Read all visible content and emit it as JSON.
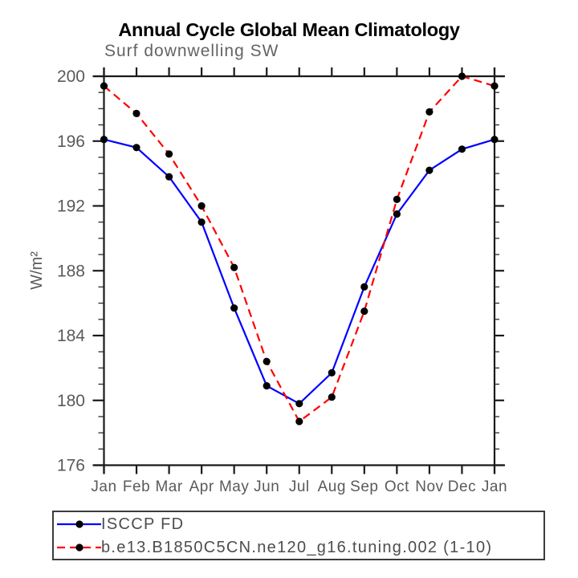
{
  "title": "Annual Cycle Global Mean Climatology",
  "subtitle": "Surf downwelling SW",
  "colors": {
    "series1": "#0000ff",
    "series2": "#ff0000",
    "marker": "#000000",
    "axis": "#1a1a1a",
    "tick_label": "#5a5a5a",
    "legend_text": "#4d4d4d"
  },
  "chart_data": {
    "type": "line",
    "title": "Annual Cycle Global Mean Climatology",
    "subtitle": "Surf downwelling SW",
    "xlabel": "",
    "ylabel": "W/m²",
    "categories": [
      "Jan",
      "Feb",
      "Mar",
      "Apr",
      "May",
      "Jun",
      "Jul",
      "Aug",
      "Sep",
      "Oct",
      "Nov",
      "Dec",
      "Jan"
    ],
    "ylim": [
      176,
      200
    ],
    "y_major_ticks": [
      176,
      180,
      184,
      188,
      192,
      196,
      200
    ],
    "y_minor_step": 1,
    "grid": false,
    "legend_position": "bottom",
    "series": [
      {
        "name": "ISCCP FD",
        "color": "#0000ff",
        "line_style": "solid",
        "marker": "circle",
        "marker_color": "#000000",
        "values": [
          196.1,
          195.6,
          193.8,
          191.0,
          185.7,
          180.9,
          179.8,
          181.7,
          187.0,
          191.5,
          194.2,
          195.5,
          196.1
        ]
      },
      {
        "name": "b.e13.B1850C5CN.ne120_g16.tuning.002 (1-10)",
        "color": "#ff0000",
        "line_style": "dashed",
        "marker": "circle",
        "marker_color": "#000000",
        "values": [
          199.4,
          197.7,
          195.2,
          192.0,
          188.2,
          182.4,
          178.7,
          180.2,
          185.5,
          192.4,
          197.8,
          200.0,
          199.4
        ]
      }
    ]
  }
}
